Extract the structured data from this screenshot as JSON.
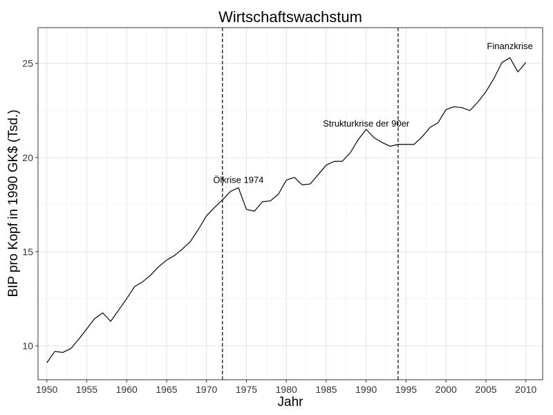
{
  "chart_data": {
    "type": "line",
    "title": "Wirtschaftswachstum",
    "xlabel": "Jahr",
    "ylabel": "BIP pro Kopf in 1990 GK$ (Tsd.)",
    "xlim": [
      1948.9,
      2012.1
    ],
    "ylim": [
      8.2,
      26.9
    ],
    "x_ticks": [
      1950,
      1955,
      1960,
      1965,
      1970,
      1975,
      1980,
      1985,
      1990,
      1995,
      2000,
      2005,
      2010
    ],
    "y_ticks": [
      10,
      15,
      20,
      25
    ],
    "grid": true,
    "legend": "none",
    "series": [
      {
        "x": [
          1950,
          1951,
          1952,
          1953,
          1954,
          1955,
          1956,
          1957,
          1958,
          1959,
          1960,
          1961,
          1962,
          1963,
          1964,
          1965,
          1966,
          1967,
          1968,
          1969,
          1970,
          1971,
          1972,
          1973,
          1974,
          1975,
          1976,
          1977,
          1978,
          1979,
          1980,
          1981,
          1982,
          1983,
          1984,
          1985,
          1986,
          1987,
          1988,
          1989,
          1990,
          1991,
          1992,
          1993,
          1994,
          1995,
          1996,
          1997,
          1998,
          1999,
          2000,
          2001,
          2002,
          2003,
          2004,
          2005,
          2006,
          2007,
          2008,
          2009,
          2010
        ],
        "values": [
          9.1,
          9.7,
          9.65,
          9.85,
          10.35,
          10.9,
          11.45,
          11.75,
          11.3,
          11.9,
          12.5,
          13.15,
          13.4,
          13.75,
          14.2,
          14.55,
          14.8,
          15.15,
          15.55,
          16.2,
          16.9,
          17.35,
          17.75,
          18.2,
          18.4,
          17.25,
          17.15,
          17.65,
          17.7,
          18.05,
          18.8,
          18.95,
          18.55,
          18.6,
          19.1,
          19.6,
          19.8,
          19.8,
          20.25,
          20.95,
          21.5,
          21.05,
          20.8,
          20.6,
          20.7,
          20.7,
          20.7,
          21.1,
          21.6,
          21.85,
          22.55,
          22.7,
          22.65,
          22.5,
          22.95,
          23.5,
          24.2,
          25.05,
          25.3,
          24.55,
          25.05
        ]
      }
    ],
    "vlines": [
      1972,
      1994
    ],
    "annotations": [
      {
        "text": "Ölkrise 1974",
        "x": 1974,
        "y": 18.8
      },
      {
        "text": "Strukturkrise der 90er",
        "x": 1990,
        "y": 21.8
      },
      {
        "text": "Finanzkrise",
        "x": 2008,
        "y": 25.9
      }
    ]
  }
}
